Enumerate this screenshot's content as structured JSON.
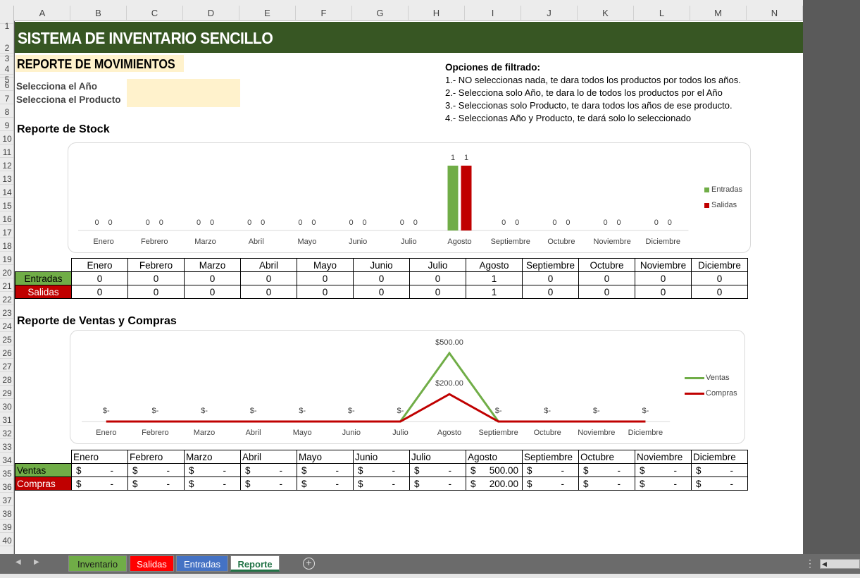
{
  "columns": [
    "A",
    "B",
    "C",
    "D",
    "E",
    "F",
    "G",
    "H",
    "I",
    "J",
    "K",
    "L",
    "M",
    "N"
  ],
  "rows": [
    "1",
    "2",
    "3",
    "4",
    "5",
    "6",
    "7",
    "8",
    "9",
    "10",
    "11",
    "12",
    "13",
    "14",
    "15",
    "16",
    "17",
    "18",
    "19",
    "20",
    "21",
    "22",
    "23",
    "24",
    "25",
    "26",
    "27",
    "28",
    "29",
    "30",
    "31",
    "32",
    "33",
    "34",
    "35",
    "36",
    "37",
    "38",
    "39",
    "40"
  ],
  "title": "SISTEMA DE INVENTARIO SENCILLO",
  "report_title": "REPORTE DE MOVIMIENTOS",
  "select_year_label": "Selecciona el Año",
  "select_product_label": "Selecciona el Producto",
  "filter": {
    "title": "Opciones de filtrado:",
    "lines": [
      "1.- NO seleccionas nada, te dara todos los productos por todos los años.",
      "2.- Selecciona solo Año, te dara lo de todos los productos por el Año",
      "3.- Seleccionas solo Producto, te dara todos los años de ese producto.",
      "4.- Seleccionas Año y Producto, te dará solo lo seleccionado"
    ]
  },
  "stock_title": "Reporte de Stock",
  "sales_title": "Reporte de Ventas y Compras",
  "months": [
    "Enero",
    "Febrero",
    "Marzo",
    "Abril",
    "Mayo",
    "Junio",
    "Julio",
    "Agosto",
    "Septiembre",
    "Octubre",
    "Noviembre",
    "Diciembre"
  ],
  "stock_table": {
    "entradas_label": "Entradas",
    "salidas_label": "Salidas",
    "entradas": [
      "0",
      "0",
      "0",
      "0",
      "0",
      "0",
      "0",
      "1",
      "0",
      "0",
      "0",
      "0"
    ],
    "salidas": [
      "0",
      "0",
      "0",
      "0",
      "0",
      "0",
      "0",
      "1",
      "0",
      "0",
      "0",
      "0"
    ]
  },
  "sales_table": {
    "ventas_label": "Ventas",
    "compras_label": "Compras",
    "currency": "$",
    "ventas": [
      "-",
      "-",
      "-",
      "-",
      "-",
      "-",
      "-",
      "500.00",
      "-",
      "-",
      "-",
      "-"
    ],
    "compras": [
      "-",
      "-",
      "-",
      "-",
      "-",
      "-",
      "-",
      "200.00",
      "-",
      "-",
      "-",
      "-"
    ]
  },
  "chart_data": [
    {
      "type": "bar",
      "categories": [
        "Enero",
        "Febrero",
        "Marzo",
        "Abril",
        "Mayo",
        "Junio",
        "Julio",
        "Agosto",
        "Septiembre",
        "Octubre",
        "Noviembre",
        "Diciembre"
      ],
      "series": [
        {
          "name": "Entradas",
          "values": [
            0,
            0,
            0,
            0,
            0,
            0,
            0,
            1,
            0,
            0,
            0,
            0
          ],
          "color": "#70ad47"
        },
        {
          "name": "Salidas",
          "values": [
            0,
            0,
            0,
            0,
            0,
            0,
            0,
            1,
            0,
            0,
            0,
            0
          ],
          "color": "#c00000"
        }
      ],
      "legend": "right",
      "ylim": [
        0,
        1
      ]
    },
    {
      "type": "line",
      "categories": [
        "Enero",
        "Febrero",
        "Marzo",
        "Abril",
        "Mayo",
        "Junio",
        "Julio",
        "Agosto",
        "Septiembre",
        "Octubre",
        "Noviembre",
        "Diciembre"
      ],
      "series": [
        {
          "name": "Ventas",
          "values": [
            0,
            0,
            0,
            0,
            0,
            0,
            0,
            500,
            0,
            0,
            0,
            0
          ],
          "color": "#70ad47"
        },
        {
          "name": "Compras",
          "values": [
            0,
            0,
            0,
            0,
            0,
            0,
            0,
            200,
            0,
            0,
            0,
            0
          ],
          "color": "#c00000"
        }
      ],
      "data_labels": {
        "ventas": [
          "$-",
          "$-",
          "$-",
          "$-",
          "$-",
          "$-",
          "$-",
          "$500.00",
          "$-",
          "$-",
          "$-",
          "$-"
        ],
        "compras_peak": "$200.00"
      },
      "legend": "right",
      "ylim": [
        0,
        500
      ]
    }
  ],
  "tabs": {
    "inventario": "Inventario",
    "salidas": "Salidas",
    "entradas": "Entradas",
    "reporte": "Reporte"
  },
  "icons": {
    "add_sheet": "plus-circle-icon",
    "nav_prev": "chevron-left-icon",
    "nav_next": "chevron-right-icon",
    "more": "vertical-dots-icon"
  }
}
